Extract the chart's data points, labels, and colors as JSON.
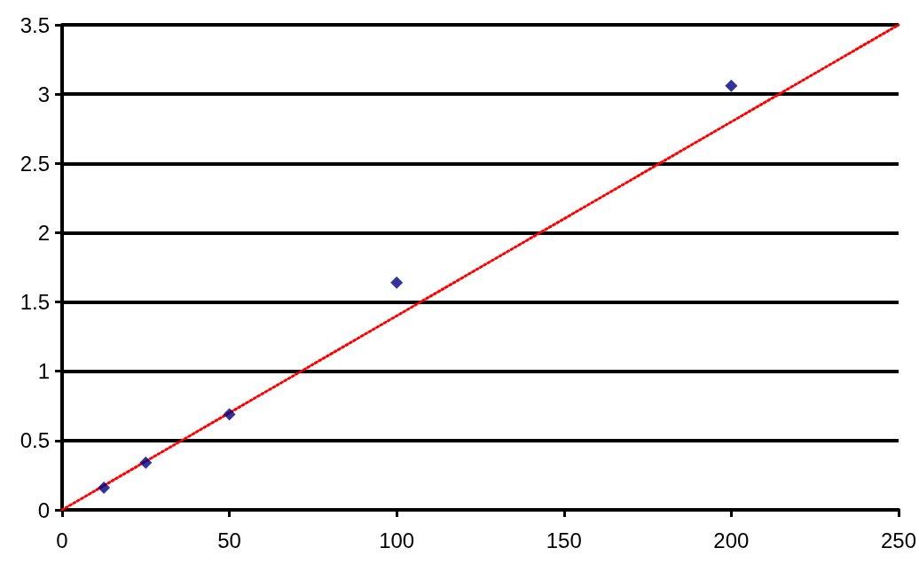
{
  "chart_data": {
    "type": "scatter",
    "xlim": [
      0,
      250
    ],
    "xticks": [
      0,
      50,
      100,
      150,
      200,
      250
    ],
    "ylim": [
      0,
      3.5
    ],
    "yticks": [
      0,
      0.5,
      1,
      1.5,
      2,
      2.5,
      3,
      3.5
    ],
    "grid": "y",
    "marker": "diamond",
    "series": [
      {
        "color": "#000080",
        "x": [
          12.5,
          25,
          50,
          100,
          200
        ],
        "values": [
          0.16,
          0.34,
          0.69,
          1.64,
          3.06
        ]
      },
      {
        "type": "line",
        "color": "#ff0000",
        "line_style": "dotted",
        "marker": "none",
        "x": [
          0,
          250
        ],
        "values": [
          0,
          3.5
        ]
      }
    ]
  }
}
